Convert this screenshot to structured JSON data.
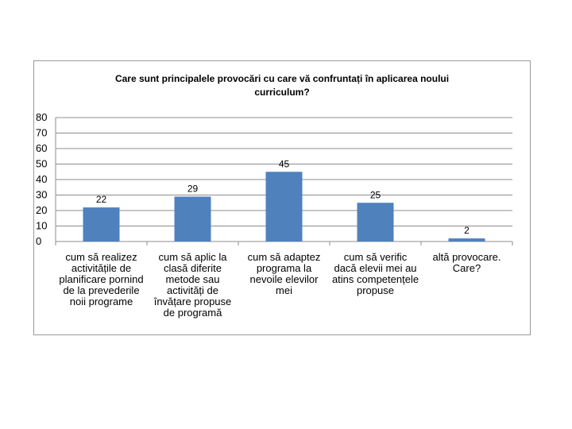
{
  "chart_data": {
    "type": "bar",
    "title_lines": [
      "Care sunt principalele provocări cu care vă confruntați în aplicarea noului",
      "curriculum?"
    ],
    "categories": [
      "cum să realizez activitățile de planificare pornind de la prevederile noii programe",
      "cum să aplic la clasă diferite metode sau activități de învățare propuse de programă",
      "cum să adaptez programa la nevoile elevilor mei",
      "cum să verific dacă elevii mei au atins competențele propuse",
      "altă provocare. Care?"
    ],
    "values": [
      22,
      29,
      45,
      25,
      2
    ],
    "data_labels": [
      "22",
      "29",
      "45",
      "25",
      "2"
    ],
    "y_ticks": [
      "0",
      "10",
      "20",
      "30",
      "40",
      "50",
      "60",
      "70",
      "80"
    ],
    "ylim": [
      0,
      80
    ],
    "grid": true,
    "legend": "none",
    "bar_color": "#4f81bd",
    "grid_color": "#8c8c8c"
  }
}
